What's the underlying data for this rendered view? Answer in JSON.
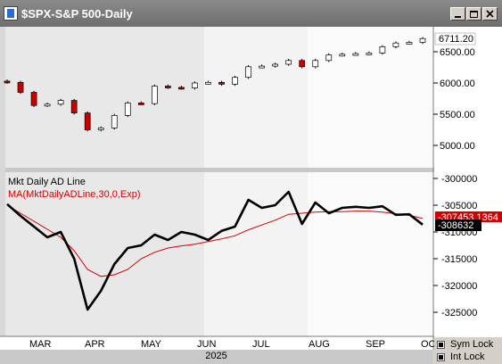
{
  "window": {
    "title": "$SPX-S&P 500-Daily"
  },
  "price_panel": {
    "last_value": "6711.20",
    "yticks": [
      "6500.00",
      "6000.00",
      "5500.00",
      "5000.00"
    ]
  },
  "breadth_panel": {
    "indicator_label": "Mkt Daily AD Line",
    "ma_label": "MA(MktDailyADLine,30,0,Exp)",
    "ma_value": "-307453.1364",
    "last_value": "-308632",
    "yticks": [
      "-300000",
      "-305000",
      "-310000",
      "-315000",
      "-320000",
      "-325000"
    ]
  },
  "xaxis": {
    "months": [
      "MAR",
      "APR",
      "MAY",
      "JUN",
      "JUL",
      "AUG",
      "SEP",
      "OCT"
    ],
    "year": "2025"
  },
  "controls": {
    "sym_lock_label": "Sym Lock",
    "int_lock_label": "Int Lock",
    "sym_lock_checked": true,
    "int_lock_checked": true
  },
  "colors": {
    "up_candle": "#ffffff",
    "down_candle": "#cc0000",
    "ad_line": "#000000",
    "ma_line": "#d40000",
    "title_bar": "#7a7a7a"
  },
  "chart_data": [
    {
      "type": "candlestick",
      "title": "$SPX-S&P 500-Daily",
      "x": [
        "Feb 24",
        "Mar 3",
        "Mar 10",
        "Mar 17",
        "Mar 24",
        "Mar 31",
        "Apr 7",
        "Apr 14",
        "Apr 21",
        "Apr 28",
        "May 5",
        "May 12",
        "May 19",
        "May 27",
        "Jun 2",
        "Jun 9",
        "Jun 16",
        "Jun 23",
        "Jun 30",
        "Jul 7",
        "Jul 14",
        "Jul 21",
        "Jul 28",
        "Aug 4",
        "Aug 11",
        "Aug 18",
        "Aug 25",
        "Sep 2",
        "Sep 8",
        "Sep 15",
        "Sep 22",
        "Sep 29"
      ],
      "close": [
        6010,
        5850,
        5640,
        5660,
        5720,
        5520,
        5250,
        5280,
        5480,
        5680,
        5670,
        5950,
        5930,
        5920,
        6000,
        6010,
        5980,
        6090,
        6260,
        6270,
        6300,
        6360,
        6260,
        6360,
        6450,
        6460,
        6470,
        6480,
        6580,
        6640,
        6650,
        6711.2
      ],
      "ylim": [
        4700,
        6800
      ],
      "yticks": [
        5000,
        5500,
        6000,
        6500
      ],
      "last_value": 6711.2
    },
    {
      "type": "line",
      "series": [
        {
          "name": "Mkt Daily AD Line",
          "values": [
            -304800,
            -307000,
            -309000,
            -311000,
            -310000,
            -315000,
            -324500,
            -321000,
            -316000,
            -313000,
            -312500,
            -310500,
            -311500,
            -310000,
            -310500,
            -311500,
            -309800,
            -309000,
            -304000,
            -305500,
            -305000,
            -302500,
            -308500,
            -304500,
            -306500,
            -305500,
            -305300,
            -305500,
            -305200,
            -306800,
            -306700,
            -308632
          ]
        },
        {
          "name": "MA(MktDailyADLine,30,0,Exp)",
          "values": [
            -305000,
            -306500,
            -308000,
            -309500,
            -311000,
            -313500,
            -317000,
            -318300,
            -318000,
            -317000,
            -315000,
            -313800,
            -313000,
            -312600,
            -312300,
            -311800,
            -311300,
            -310700,
            -309600,
            -308700,
            -307800,
            -306700,
            -306500,
            -306300,
            -306200,
            -306200,
            -306100,
            -306100,
            -306300,
            -306600,
            -306900,
            -307453.1364
          ]
        }
      ],
      "ylim": [
        -328000,
        -298500
      ],
      "yticks": [
        -300000,
        -305000,
        -310000,
        -315000,
        -320000,
        -325000
      ],
      "last_values": {
        "ad_line": -308632,
        "ma": -307453.1364
      }
    }
  ]
}
